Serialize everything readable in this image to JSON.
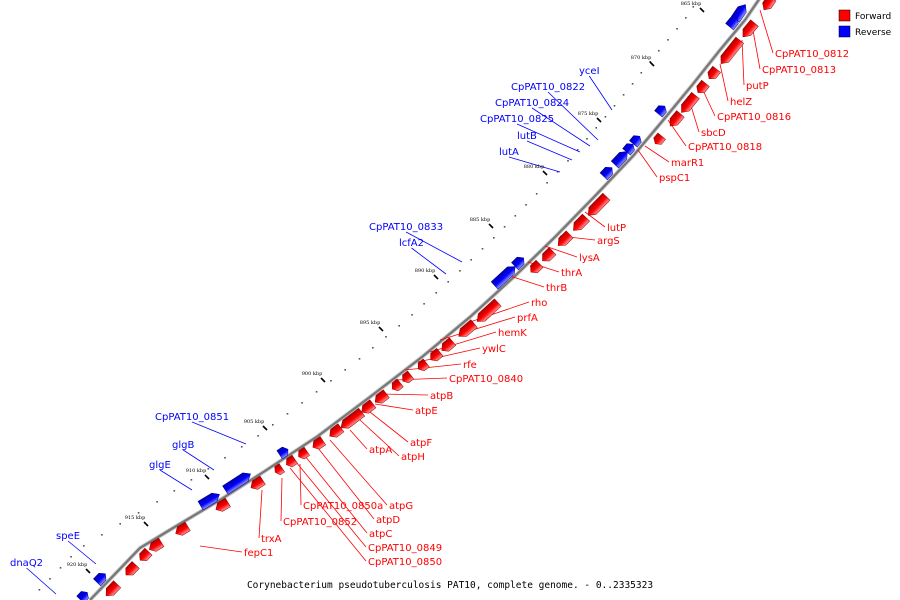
{
  "caption": "Corynebacterium pseudotuberculosis PAT10, complete genome. - 0..2335323",
  "legend": [
    {
      "label": "Forward",
      "color": "#ff0000"
    },
    {
      "label": "Reverse",
      "color": "#0000ff"
    }
  ],
  "colors": {
    "forward": "#ff0000",
    "reverse": "#0000ff",
    "backbone": "#777777"
  },
  "kbp_marks": [
    "865 kbp",
    "870 kbp",
    "875 kbp",
    "880 kbp",
    "885 kbp",
    "890 kbp",
    "895 kbp",
    "900 kbp",
    "905 kbp",
    "910 kbp",
    "915 kbp",
    "920 kbp"
  ],
  "genes_forward": [
    "CpPAT10_0812",
    "CpPAT10_0813",
    "putP",
    "helZ",
    "CpPAT10_0816",
    "sbcD",
    "CpPAT10_0818",
    "marR1",
    "pspC1",
    "lutP",
    "argS",
    "lysA",
    "thrA",
    "thrB",
    "rho",
    "prfA",
    "hemK",
    "ywlC",
    "rfe",
    "CpPAT10_0840",
    "atpB",
    "atpE",
    "atpF",
    "atpH",
    "atpA",
    "atpG",
    "atpD",
    "CpPAT10_0850a",
    "atpC",
    "CpPAT10_0849",
    "CpPAT10_0850",
    "CpPAT10_0852",
    "trxA",
    "fepC1"
  ],
  "genes_reverse": [
    "yceI",
    "CpPAT10_0822",
    "CpPAT10_0824",
    "CpPAT10_0825",
    "lutB",
    "lutA",
    "CpPAT10_0833",
    "lcfA2",
    "CpPAT10_0851",
    "glgB",
    "glgE",
    "speE",
    "dnaQ2"
  ]
}
